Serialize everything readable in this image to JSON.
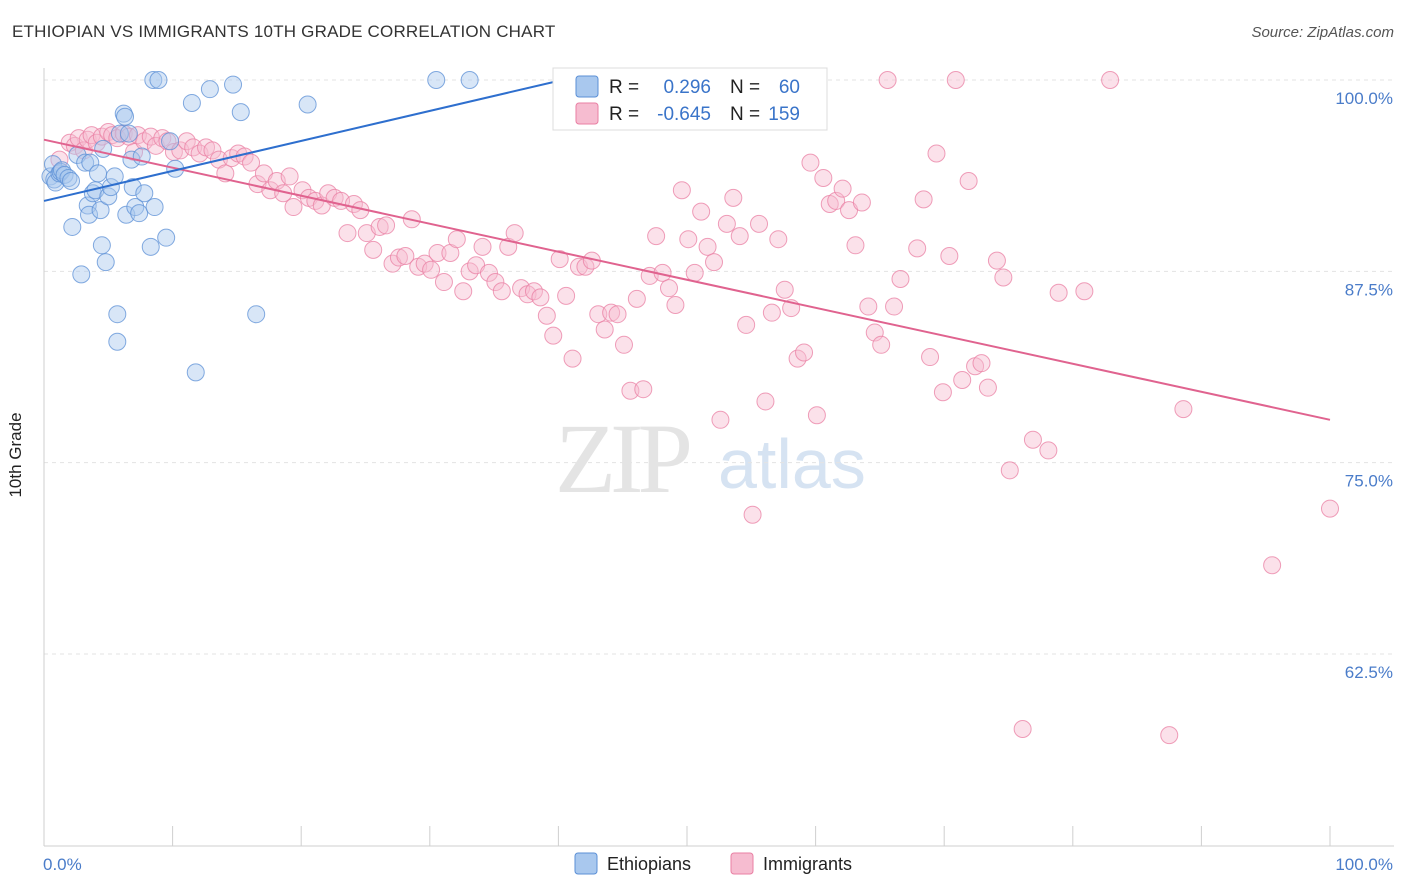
{
  "header": {
    "title": "ETHIOPIAN VS IMMIGRANTS 10TH GRADE CORRELATION CHART",
    "source": "Source: ZipAtlas.com"
  },
  "watermark": {
    "zip": "ZIP",
    "atlas": "atlas"
  },
  "legend": {
    "r_label": "R =",
    "n_label": "N =",
    "ethiopians": {
      "r": "0.296",
      "n": "60"
    },
    "immigrants": {
      "r": "-0.645",
      "n": "159"
    }
  },
  "bottom_legend": {
    "ethiopians": "Ethiopians",
    "immigrants": "Immigrants"
  },
  "colors": {
    "ethiopians_fill": "#a9c8ee",
    "ethiopians_stroke": "#5b8fd6",
    "ethiopians_line": "#2e6fce",
    "immigrants_fill": "#f6bcd0",
    "immigrants_stroke": "#e97fa3",
    "immigrants_line": "#e0638f",
    "value_text": "#3a74c9"
  },
  "chart_data": {
    "type": "scatter",
    "title": "ETHIOPIAN VS IMMIGRANTS 10TH GRADE CORRELATION CHART",
    "xlabel": "",
    "ylabel": "10th Grade",
    "xlim": [
      0,
      100
    ],
    "ylim": [
      50,
      104
    ],
    "x_tick_labels": [
      "0.0%",
      "100.0%"
    ],
    "y_ticks": [
      100,
      87.5,
      75,
      62.5
    ],
    "y_tick_labels": [
      "100.0%",
      "87.5%",
      "75.0%",
      "62.5%"
    ],
    "series": [
      {
        "name": "Ethiopians",
        "r": 0.296,
        "n": 60,
        "trend": {
          "x": [
            0,
            40.3
          ],
          "y": [
            92.1,
            100.0
          ]
        },
        "points": [
          [
            0.5,
            93.7
          ],
          [
            0.7,
            94.5
          ],
          [
            0.8,
            93.5
          ],
          [
            0.9,
            93.3
          ],
          [
            1.2,
            93.9
          ],
          [
            1.3,
            94.0
          ],
          [
            1.4,
            94.1
          ],
          [
            1.6,
            93.8
          ],
          [
            1.9,
            93.6
          ],
          [
            2.1,
            93.4
          ],
          [
            2.2,
            90.4
          ],
          [
            2.6,
            95.1
          ],
          [
            2.9,
            87.3
          ],
          [
            3.2,
            94.6
          ],
          [
            3.4,
            91.8
          ],
          [
            3.5,
            91.2
          ],
          [
            3.6,
            94.6
          ],
          [
            3.8,
            92.6
          ],
          [
            4.0,
            92.8
          ],
          [
            4.2,
            93.9
          ],
          [
            4.4,
            91.5
          ],
          [
            4.5,
            89.2
          ],
          [
            4.6,
            95.5
          ],
          [
            4.8,
            88.1
          ],
          [
            5.0,
            92.4
          ],
          [
            5.2,
            93.0
          ],
          [
            5.5,
            93.7
          ],
          [
            5.7,
            84.7
          ],
          [
            5.7,
            82.9
          ],
          [
            5.9,
            96.5
          ],
          [
            6.2,
            97.8
          ],
          [
            6.3,
            97.6
          ],
          [
            6.4,
            91.2
          ],
          [
            6.6,
            96.5
          ],
          [
            6.8,
            94.8
          ],
          [
            6.9,
            93.0
          ],
          [
            7.1,
            91.7
          ],
          [
            7.4,
            91.3
          ],
          [
            7.6,
            95.0
          ],
          [
            7.8,
            92.6
          ],
          [
            8.3,
            89.1
          ],
          [
            8.5,
            100.0
          ],
          [
            8.6,
            91.7
          ],
          [
            8.9,
            100.0
          ],
          [
            9.5,
            89.7
          ],
          [
            9.8,
            96.0
          ],
          [
            10.2,
            94.2
          ],
          [
            11.8,
            80.9
          ],
          [
            11.5,
            98.5
          ],
          [
            12.9,
            99.4
          ],
          [
            14.7,
            99.7
          ],
          [
            15.3,
            97.9
          ],
          [
            16.5,
            84.7
          ],
          [
            20.5,
            98.4
          ],
          [
            30.5,
            100.0
          ],
          [
            33.1,
            100.0
          ]
        ]
      },
      {
        "name": "Immigrants",
        "r": -0.645,
        "n": 159,
        "trend": {
          "x": [
            0,
            100
          ],
          "y": [
            96.1,
            77.8
          ]
        },
        "points": [
          [
            1.2,
            94.8
          ],
          [
            2.0,
            95.9
          ],
          [
            2.4,
            95.7
          ],
          [
            2.7,
            96.2
          ],
          [
            3.1,
            95.4
          ],
          [
            3.4,
            96.1
          ],
          [
            3.7,
            96.4
          ],
          [
            4.1,
            95.9
          ],
          [
            4.5,
            96.3
          ],
          [
            5.0,
            96.6
          ],
          [
            5.3,
            96.4
          ],
          [
            5.7,
            96.2
          ],
          [
            6.2,
            96.5
          ],
          [
            6.6,
            96.3
          ],
          [
            7.0,
            95.3
          ],
          [
            7.3,
            96.4
          ],
          [
            7.8,
            96.0
          ],
          [
            8.3,
            96.3
          ],
          [
            8.7,
            95.7
          ],
          [
            9.2,
            96.2
          ],
          [
            9.6,
            96.0
          ],
          [
            10.1,
            95.3
          ],
          [
            10.6,
            95.4
          ],
          [
            11.1,
            96.0
          ],
          [
            11.6,
            95.6
          ],
          [
            12.1,
            95.2
          ],
          [
            12.6,
            95.6
          ],
          [
            13.1,
            95.4
          ],
          [
            13.6,
            94.8
          ],
          [
            14.1,
            93.9
          ],
          [
            14.6,
            94.9
          ],
          [
            15.1,
            95.2
          ],
          [
            15.6,
            95.0
          ],
          [
            16.1,
            94.6
          ],
          [
            16.6,
            93.2
          ],
          [
            17.1,
            93.9
          ],
          [
            17.6,
            92.8
          ],
          [
            18.1,
            93.4
          ],
          [
            18.6,
            92.6
          ],
          [
            19.1,
            93.7
          ],
          [
            19.4,
            91.7
          ],
          [
            20.1,
            92.8
          ],
          [
            20.6,
            92.3
          ],
          [
            21.1,
            92.1
          ],
          [
            21.6,
            91.8
          ],
          [
            22.1,
            92.6
          ],
          [
            22.6,
            92.3
          ],
          [
            23.1,
            92.1
          ],
          [
            23.6,
            90.0
          ],
          [
            24.1,
            91.9
          ],
          [
            24.6,
            91.5
          ],
          [
            25.1,
            90.0
          ],
          [
            25.6,
            88.9
          ],
          [
            26.1,
            90.4
          ],
          [
            26.6,
            90.5
          ],
          [
            27.1,
            88.0
          ],
          [
            27.6,
            88.4
          ],
          [
            28.1,
            88.5
          ],
          [
            28.6,
            90.9
          ],
          [
            29.1,
            87.8
          ],
          [
            29.6,
            88.0
          ],
          [
            30.1,
            87.6
          ],
          [
            30.6,
            88.7
          ],
          [
            31.1,
            86.8
          ],
          [
            31.6,
            88.7
          ],
          [
            32.1,
            89.6
          ],
          [
            32.6,
            86.2
          ],
          [
            33.1,
            87.5
          ],
          [
            33.6,
            87.9
          ],
          [
            34.1,
            89.1
          ],
          [
            34.6,
            87.4
          ],
          [
            35.1,
            86.8
          ],
          [
            35.6,
            86.2
          ],
          [
            36.1,
            89.1
          ],
          [
            36.6,
            90.0
          ],
          [
            37.1,
            86.4
          ],
          [
            37.6,
            86.0
          ],
          [
            38.1,
            86.2
          ],
          [
            38.6,
            85.8
          ],
          [
            39.1,
            84.6
          ],
          [
            39.6,
            83.3
          ],
          [
            40.1,
            88.3
          ],
          [
            40.6,
            85.9
          ],
          [
            41.1,
            81.8
          ],
          [
            41.6,
            87.8
          ],
          [
            42.1,
            87.8
          ],
          [
            42.6,
            88.2
          ],
          [
            43.1,
            84.7
          ],
          [
            43.6,
            83.7
          ],
          [
            44.1,
            84.8
          ],
          [
            44.6,
            84.7
          ],
          [
            45.1,
            82.7
          ],
          [
            45.6,
            79.7
          ],
          [
            46.1,
            85.7
          ],
          [
            46.6,
            79.8
          ],
          [
            47.1,
            87.2
          ],
          [
            47.6,
            89.8
          ],
          [
            48.1,
            87.4
          ],
          [
            48.6,
            86.4
          ],
          [
            49.1,
            85.3
          ],
          [
            49.6,
            92.8
          ],
          [
            50.1,
            89.6
          ],
          [
            50.6,
            87.4
          ],
          [
            51.1,
            91.4
          ],
          [
            51.6,
            89.1
          ],
          [
            52.1,
            88.1
          ],
          [
            52.6,
            77.8
          ],
          [
            53.1,
            90.6
          ],
          [
            53.6,
            92.3
          ],
          [
            54.1,
            89.8
          ],
          [
            54.6,
            84.0
          ],
          [
            55.1,
            71.6
          ],
          [
            55.6,
            90.6
          ],
          [
            56.1,
            79.0
          ],
          [
            56.6,
            84.8
          ],
          [
            57.1,
            89.6
          ],
          [
            57.6,
            86.3
          ],
          [
            58.1,
            85.1
          ],
          [
            58.6,
            81.8
          ],
          [
            59.1,
            82.2
          ],
          [
            59.6,
            94.6
          ],
          [
            60.1,
            78.1
          ],
          [
            60.6,
            93.6
          ],
          [
            61.1,
            91.9
          ],
          [
            61.6,
            92.1
          ],
          [
            62.1,
            92.9
          ],
          [
            62.6,
            91.5
          ],
          [
            63.1,
            89.2
          ],
          [
            63.6,
            92.0
          ],
          [
            64.1,
            85.2
          ],
          [
            64.6,
            83.5
          ],
          [
            65.1,
            82.7
          ],
          [
            65.6,
            100.0
          ],
          [
            66.1,
            85.2
          ],
          [
            66.6,
            87.0
          ],
          [
            67.9,
            89.0
          ],
          [
            68.4,
            92.2
          ],
          [
            68.9,
            81.9
          ],
          [
            69.4,
            95.2
          ],
          [
            69.9,
            79.6
          ],
          [
            70.4,
            88.5
          ],
          [
            70.9,
            100.0
          ],
          [
            71.4,
            80.4
          ],
          [
            71.9,
            93.4
          ],
          [
            72.4,
            81.3
          ],
          [
            72.9,
            81.5
          ],
          [
            73.4,
            79.9
          ],
          [
            74.1,
            88.2
          ],
          [
            74.6,
            87.1
          ],
          [
            75.1,
            74.5
          ],
          [
            76.1,
            57.6
          ],
          [
            76.9,
            76.5
          ],
          [
            78.1,
            75.8
          ],
          [
            78.9,
            86.1
          ],
          [
            80.9,
            86.2
          ],
          [
            82.9,
            100.0
          ],
          [
            87.5,
            57.2
          ],
          [
            88.6,
            78.5
          ],
          [
            95.5,
            68.3
          ],
          [
            100.0,
            72.0
          ]
        ]
      }
    ]
  }
}
